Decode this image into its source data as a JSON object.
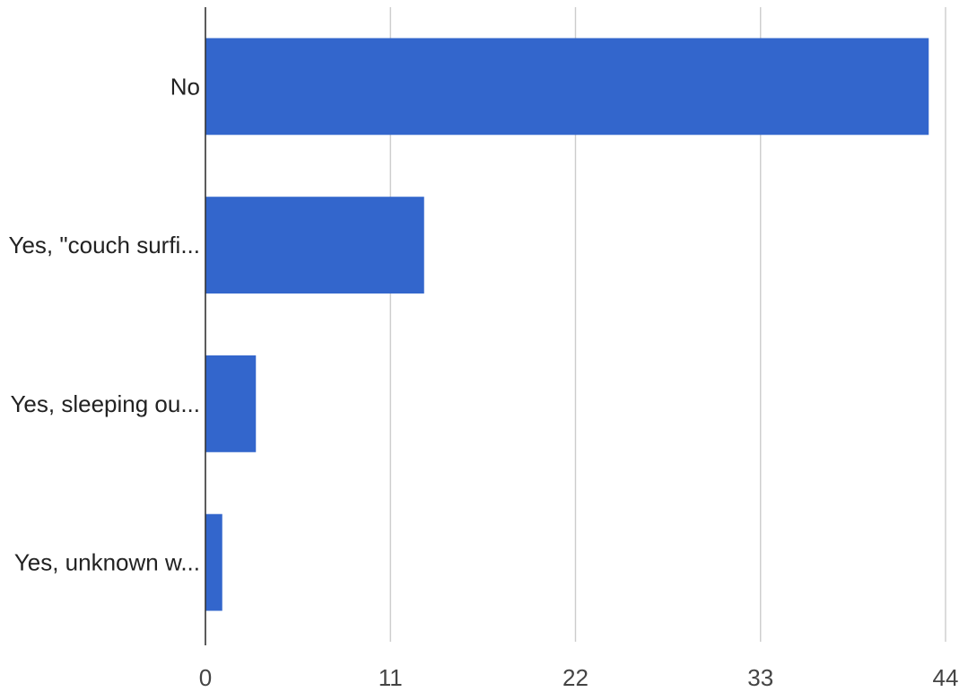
{
  "chart_data": {
    "type": "bar",
    "orientation": "horizontal",
    "categories": [
      "No",
      "Yes, \"couch surfi...",
      "Yes, sleeping ou...",
      "Yes, unknown w..."
    ],
    "values": [
      43,
      13,
      3,
      1
    ],
    "xticks": [
      "0",
      "11",
      "22",
      "33",
      "44"
    ],
    "xlim": [
      0,
      44
    ],
    "title": "",
    "xlabel": "",
    "ylabel": "",
    "grid": true,
    "bar_color": "#3366cc",
    "grid_color": "#cccccc",
    "axis_color": "#333333"
  }
}
